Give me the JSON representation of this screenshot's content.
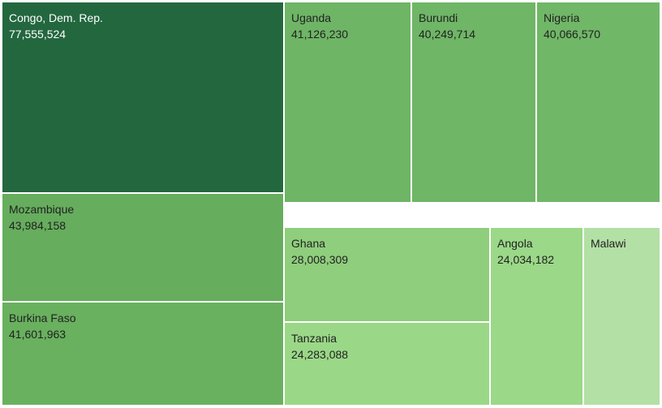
{
  "chart_data": {
    "type": "treemap",
    "items": [
      {
        "label": "Congo, Dem. Rep.",
        "value": 77555524,
        "value_text": "77,555,524",
        "color": "#23673f",
        "text_color": "#ffffff"
      },
      {
        "label": "Mozambique",
        "value": 43984158,
        "value_text": "43,984,158",
        "color": "#66ad5d",
        "text_color": "#222222"
      },
      {
        "label": "Burkina Faso",
        "value": 41601963,
        "value_text": "41,601,963",
        "color": "#69b05f",
        "text_color": "#222222"
      },
      {
        "label": "Uganda",
        "value": 41126230,
        "value_text": "41,126,230",
        "color": "#6eb566",
        "text_color": "#222222"
      },
      {
        "label": "Burundi",
        "value": 40249714,
        "value_text": "40,249,714",
        "color": "#6fb666",
        "text_color": "#222222"
      },
      {
        "label": "Nigeria",
        "value": 40066570,
        "value_text": "40,066,570",
        "color": "#70b767",
        "text_color": "#222222"
      },
      {
        "label": "Ghana",
        "value": 28008309,
        "value_text": "28,008,309",
        "color": "#8fce7c",
        "text_color": "#222222"
      },
      {
        "label": "Tanzania",
        "value": 24283088,
        "value_text": "24,283,088",
        "color": "#9ad887",
        "text_color": "#222222"
      },
      {
        "label": "Angola",
        "value": 24034182,
        "value_text": "24,034,182",
        "color": "#9bd888",
        "text_color": "#222222"
      },
      {
        "label": "Malawi",
        "value": null,
        "value_text": "",
        "color": "#b3e0a5",
        "text_color": "#222222"
      }
    ]
  }
}
